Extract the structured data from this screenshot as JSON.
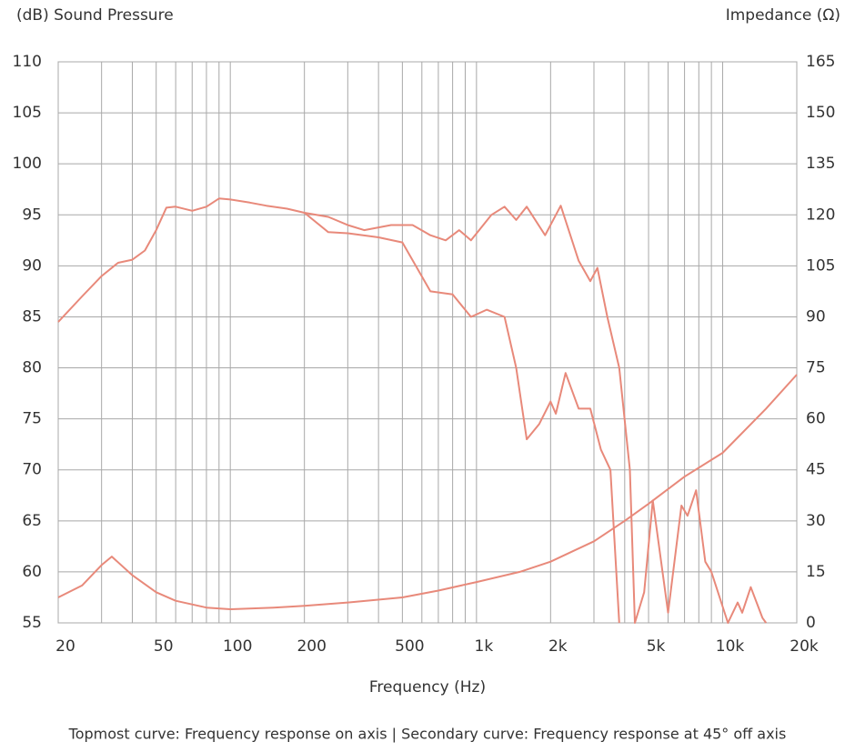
{
  "chart_data": {
    "type": "line",
    "y_axis_label": "(dB) Sound Pressure",
    "y2_axis_label": "Impedance (Ω)",
    "x_axis_label": "Frequency (Hz)",
    "footnote": "Topmost curve: Frequency response on axis  |  Secondary curve: Frequency response at 45° off axis",
    "log_x": true,
    "grid": true,
    "xlim": [
      20,
      20000
    ],
    "xticks": [
      20,
      50,
      100,
      200,
      500,
      {
        "value": 1000,
        "label": "1k"
      },
      {
        "value": 2000,
        "label": "2k"
      },
      {
        "value": 5000,
        "label": "5k"
      },
      {
        "value": 10000,
        "label": "10k"
      },
      {
        "value": 20000,
        "label": "20k"
      }
    ],
    "x_grid": [
      30,
      40,
      60,
      70,
      80,
      90,
      300,
      400,
      600,
      700,
      800,
      900,
      3000,
      4000,
      6000,
      7000,
      8000,
      9000
    ],
    "ylim": [
      55,
      110
    ],
    "yticks": [
      55,
      60,
      65,
      70,
      75,
      80,
      85,
      90,
      95,
      100,
      105,
      110
    ],
    "y2lim": [
      0,
      165
    ],
    "y2ticks": [
      0,
      15,
      30,
      45,
      60,
      75,
      90,
      105,
      120,
      135,
      150,
      165
    ],
    "series": [
      {
        "color": "#e8897a",
        "x": [
          20,
          25,
          30,
          35,
          40,
          45,
          50,
          55,
          60,
          70,
          80,
          90,
          100,
          120,
          140,
          170,
          200,
          250,
          300,
          350,
          450,
          550,
          650,
          750,
          850,
          950,
          1150,
          1300,
          1450,
          1600,
          1900,
          2200,
          2600,
          2900,
          3100,
          3400,
          3800,
          4200,
          4400,
          4800,
          5200,
          6000,
          6800,
          7200,
          7800,
          8500,
          9000,
          10500,
          11500,
          12000,
          13000,
          14500,
          15000
        ],
        "values": [
          84.5,
          87,
          89,
          90.3,
          90.6,
          91.5,
          93.5,
          95.7,
          95.8,
          95.4,
          95.8,
          96.6,
          96.5,
          96.2,
          95.9,
          95.6,
          95.2,
          94.8,
          94,
          93.5,
          94,
          94,
          93,
          92.5,
          93.5,
          92.5,
          95,
          95.8,
          94.5,
          95.8,
          93,
          95.9,
          90.5,
          88.5,
          89.8,
          85,
          80,
          70,
          55,
          58,
          67,
          56,
          66.5,
          65.5,
          68,
          61,
          60,
          55,
          57,
          56,
          58.5,
          55.5,
          55
        ]
      },
      {
        "color": "#e8897a",
        "x": [
          200,
          250,
          300,
          400,
          500,
          650,
          800,
          950,
          1100,
          1300,
          1450,
          1600,
          1800,
          2000,
          2100,
          2300,
          2600,
          2900,
          3200,
          3500,
          3800
        ],
        "values": [
          95.2,
          93.3,
          93.2,
          92.8,
          92.3,
          87.5,
          87.2,
          85,
          85.7,
          85,
          80,
          73,
          74.5,
          76.7,
          75.5,
          79.5,
          76,
          76,
          72,
          70,
          55
        ]
      },
      {
        "color": "#e8897a",
        "axis": "y2",
        "x": [
          20,
          25,
          30,
          33,
          40,
          50,
          60,
          80,
          100,
          150,
          200,
          300,
          500,
          700,
          1000,
          1500,
          2000,
          3000,
          4000,
          5000,
          7000,
          10000,
          15000,
          20000
        ],
        "values": [
          7.5,
          11,
          17,
          19.5,
          14,
          9,
          6.5,
          4.5,
          4,
          4.5,
          5,
          6,
          7.5,
          9.5,
          12,
          15,
          18,
          24,
          30,
          35,
          43,
          50,
          63,
          73
        ]
      }
    ]
  }
}
